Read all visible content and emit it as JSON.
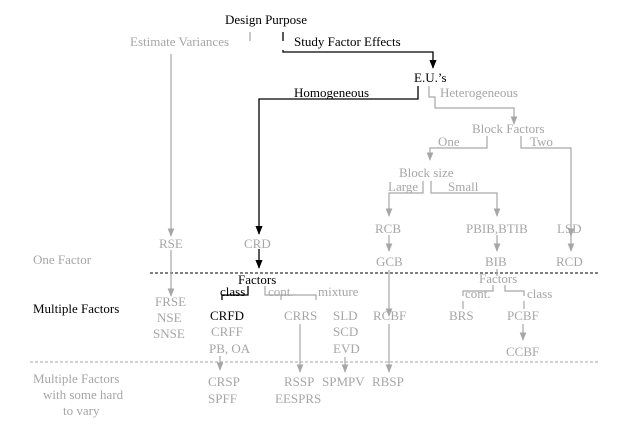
{
  "colors": {
    "active": "#000000",
    "inactive": "#a6a6a6"
  },
  "root": "Design Purpose",
  "purposes": {
    "variances": "Estimate Variances",
    "effects": "Study Factor Effects"
  },
  "units": {
    "label": "E.U.’s",
    "homogeneous": "Homogeneous",
    "heterogeneous": "Heterogeneous"
  },
  "block": {
    "factors": "Block Factors",
    "one": "One",
    "two": "Two",
    "size": "Block size",
    "large": "Large",
    "small": "Small"
  },
  "levels": {
    "one_factor": "One Factor",
    "multiple_factors": "Multiple Factors",
    "hard_to_vary": [
      "Multiple Factors",
      "with some hard",
      "to vary"
    ]
  },
  "one_factor_designs": {
    "rse": "RSE",
    "crd": "CRD",
    "rcb": "RCB",
    "gcb": "GCB",
    "pbib": "PBIB,BTIB",
    "bib": "BIB",
    "lsd": "LSD",
    "rcd": "RCD"
  },
  "factors_crd": {
    "label": "Factors",
    "class": "class",
    "cont": "cont.",
    "mixture": "mixture"
  },
  "factors_bib": {
    "label": "Factors",
    "cont": "cont.",
    "class": "class"
  },
  "multiple_factor_designs": {
    "frse": "FRSE",
    "nse": "NSE",
    "snse": "SNSE",
    "crfd": "CRFD",
    "crff": "CRFF",
    "pboa": "PB, OA",
    "crrs": "CRRS",
    "sld": "SLD",
    "scd": "SCD",
    "evd": "EVD",
    "rcbf": "RCBF",
    "brs": "BRS",
    "pcbf": "PCBF",
    "ccbf": "CCBF"
  },
  "hard_to_vary_designs": {
    "crsp": "CRSP",
    "spff": "SPFF",
    "rssp": "RSSP",
    "eesprs": "EESPRS",
    "spmpv": "SPMPV",
    "rbsp": "RBSP"
  }
}
